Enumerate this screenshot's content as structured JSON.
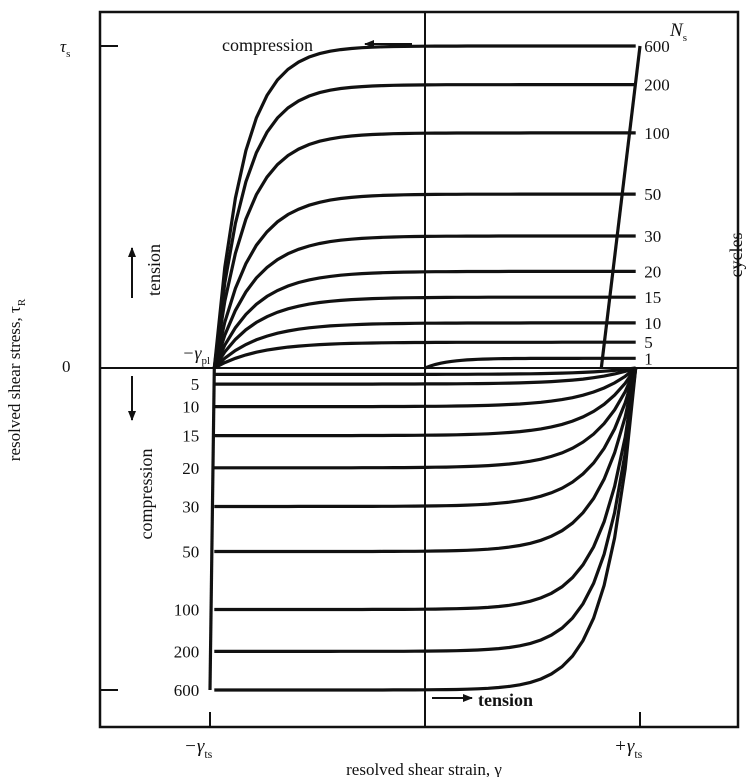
{
  "chart_data": {
    "type": "line",
    "xlabel": "resolved shear strain, γ",
    "ylabel": "resolved shear stress, τ",
    "ylabel_sub": "R",
    "xlim": [
      -1.25,
      1.0
    ],
    "ylim": [
      -1.08,
      1.05
    ],
    "x_ticks": [
      {
        "value": -1,
        "label": "−γ",
        "sub": "ts"
      },
      {
        "value": 1,
        "label": "+γ",
        "sub": "ts"
      }
    ],
    "y_ticks": [
      {
        "value": 1,
        "label": "τ",
        "sub": "s"
      },
      {
        "value": 0,
        "label": "0",
        "sub": ""
      },
      {
        "value": -1,
        "label": "",
        "sub": ""
      }
    ],
    "loading_axis": {
      "label": "N",
      "sub": "s",
      "unit": "cycles"
    },
    "annotations": {
      "compression_top": "compression",
      "tension_bottom": "tension",
      "tension_left": "tension",
      "compression_left": "compression",
      "gamma_pl": "−γ",
      "gamma_pl_sub": "pl"
    },
    "series": [
      {
        "cycles": "1",
        "label": "1",
        "tension_peak": 0.03,
        "compression_peak": -0.02
      },
      {
        "cycles": "5",
        "label": "5",
        "tension_peak": 0.08,
        "compression_peak": -0.05
      },
      {
        "cycles": "10",
        "label": "10",
        "tension_peak": 0.14,
        "compression_peak": -0.12
      },
      {
        "cycles": "15",
        "label": "15",
        "tension_peak": 0.22,
        "compression_peak": -0.21
      },
      {
        "cycles": "20",
        "label": "20",
        "tension_peak": 0.3,
        "compression_peak": -0.31
      },
      {
        "cycles": "30",
        "label": "30",
        "tension_peak": 0.41,
        "compression_peak": -0.43
      },
      {
        "cycles": "50",
        "label": "50",
        "tension_peak": 0.54,
        "compression_peak": -0.57
      },
      {
        "cycles": "100",
        "label": "100",
        "tension_peak": 0.73,
        "compression_peak": -0.75
      },
      {
        "cycles": "200",
        "label": "200",
        "tension_peak": 0.88,
        "compression_peak": -0.88
      },
      {
        "cycles": "600",
        "label": "600",
        "tension_peak": 1.0,
        "compression_peak": -1.0
      }
    ]
  }
}
